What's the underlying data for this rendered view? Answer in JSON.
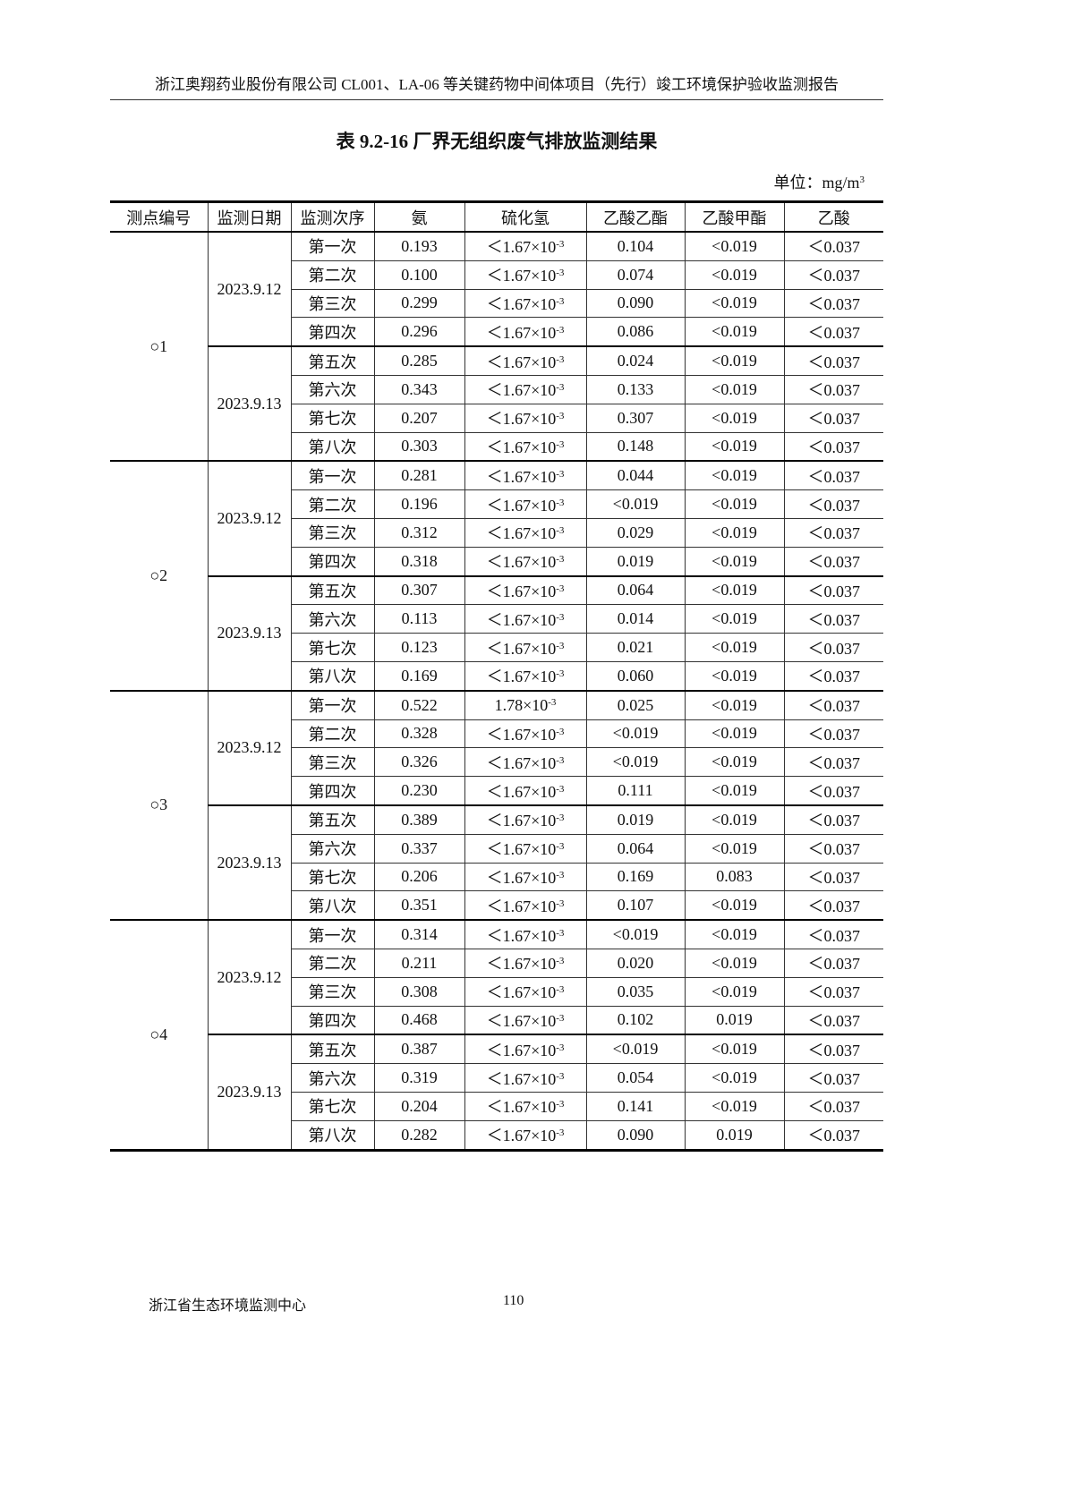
{
  "header": {
    "text": "浙江奥翔药业股份有限公司 CL001、LA-06 等关键药物中间体项目（先行）竣工环境保护验收监测报告"
  },
  "title": "表 9.2-16  厂界无组织废气排放监测结果",
  "unit": {
    "label": "单位：mg/m",
    "sup": "3"
  },
  "table": {
    "columns": [
      "测点编号",
      "监测日期",
      "监测次序",
      "氨",
      "硫化氢",
      "乙酸乙酯",
      "乙酸甲酯",
      "乙酸"
    ],
    "groups": [
      {
        "point": "○1",
        "dates": [
          {
            "date": "2023.9.12",
            "rows": [
              [
                "第一次",
                "0.193",
                [
                  "＜1.67×10",
                  "-3"
                ],
                "0.104",
                "<0.019",
                "＜0.037"
              ],
              [
                "第二次",
                "0.100",
                [
                  "＜1.67×10",
                  "-3"
                ],
                "0.074",
                "<0.019",
                "＜0.037"
              ],
              [
                "第三次",
                "0.299",
                [
                  "＜1.67×10",
                  "-3"
                ],
                "0.090",
                "<0.019",
                "＜0.037"
              ],
              [
                "第四次",
                "0.296",
                [
                  "＜1.67×10",
                  "-3"
                ],
                "0.086",
                "<0.019",
                "＜0.037"
              ]
            ]
          },
          {
            "date": "2023.9.13",
            "rows": [
              [
                "第五次",
                "0.285",
                [
                  "＜1.67×10",
                  "-3"
                ],
                "0.024",
                "<0.019",
                "＜0.037"
              ],
              [
                "第六次",
                "0.343",
                [
                  "＜1.67×10",
                  "-3"
                ],
                "0.133",
                "<0.019",
                "＜0.037"
              ],
              [
                "第七次",
                "0.207",
                [
                  "＜1.67×10",
                  "-3"
                ],
                "0.307",
                "<0.019",
                "＜0.037"
              ],
              [
                "第八次",
                "0.303",
                [
                  "＜1.67×10",
                  "-3"
                ],
                "0.148",
                "<0.019",
                "＜0.037"
              ]
            ]
          }
        ]
      },
      {
        "point": "○2",
        "dates": [
          {
            "date": "2023.9.12",
            "rows": [
              [
                "第一次",
                "0.281",
                [
                  "＜1.67×10",
                  "-3"
                ],
                "0.044",
                "<0.019",
                "＜0.037"
              ],
              [
                "第二次",
                "0.196",
                [
                  "＜1.67×10",
                  "-3"
                ],
                "<0.019",
                "<0.019",
                "＜0.037"
              ],
              [
                "第三次",
                "0.312",
                [
                  "＜1.67×10",
                  "-3"
                ],
                "0.029",
                "<0.019",
                "＜0.037"
              ],
              [
                "第四次",
                "0.318",
                [
                  "＜1.67×10",
                  "-3"
                ],
                "0.019",
                "<0.019",
                "＜0.037"
              ]
            ]
          },
          {
            "date": "2023.9.13",
            "rows": [
              [
                "第五次",
                "0.307",
                [
                  "＜1.67×10",
                  "-3"
                ],
                "0.064",
                "<0.019",
                "＜0.037"
              ],
              [
                "第六次",
                "0.113",
                [
                  "＜1.67×10",
                  "-3"
                ],
                "0.014",
                "<0.019",
                "＜0.037"
              ],
              [
                "第七次",
                "0.123",
                [
                  "＜1.67×10",
                  "-3"
                ],
                "0.021",
                "<0.019",
                "＜0.037"
              ],
              [
                "第八次",
                "0.169",
                [
                  "＜1.67×10",
                  "-3"
                ],
                "0.060",
                "<0.019",
                "＜0.037"
              ]
            ]
          }
        ]
      },
      {
        "point": "○3",
        "dates": [
          {
            "date": "2023.9.12",
            "rows": [
              [
                "第一次",
                "0.522",
                [
                  "1.78×10",
                  "-3"
                ],
                "0.025",
                "<0.019",
                "＜0.037"
              ],
              [
                "第二次",
                "0.328",
                [
                  "＜1.67×10",
                  "-3"
                ],
                "<0.019",
                "<0.019",
                "＜0.037"
              ],
              [
                "第三次",
                "0.326",
                [
                  "＜1.67×10",
                  "-3"
                ],
                "<0.019",
                "<0.019",
                "＜0.037"
              ],
              [
                "第四次",
                "0.230",
                [
                  "＜1.67×10",
                  "-3"
                ],
                "0.111",
                "<0.019",
                "＜0.037"
              ]
            ]
          },
          {
            "date": "2023.9.13",
            "rows": [
              [
                "第五次",
                "0.389",
                [
                  "＜1.67×10",
                  "-3"
                ],
                "0.019",
                "<0.019",
                "＜0.037"
              ],
              [
                "第六次",
                "0.337",
                [
                  "＜1.67×10",
                  "-3"
                ],
                "0.064",
                "<0.019",
                "＜0.037"
              ],
              [
                "第七次",
                "0.206",
                [
                  "＜1.67×10",
                  "-3"
                ],
                "0.169",
                "0.083",
                "＜0.037"
              ],
              [
                "第八次",
                "0.351",
                [
                  "＜1.67×10",
                  "-3"
                ],
                "0.107",
                "<0.019",
                "＜0.037"
              ]
            ]
          }
        ]
      },
      {
        "point": "○4",
        "dates": [
          {
            "date": "2023.9.12",
            "rows": [
              [
                "第一次",
                "0.314",
                [
                  "＜1.67×10",
                  "-3"
                ],
                "<0.019",
                "<0.019",
                "＜0.037"
              ],
              [
                "第二次",
                "0.211",
                [
                  "＜1.67×10",
                  "-3"
                ],
                "0.020",
                "<0.019",
                "＜0.037"
              ],
              [
                "第三次",
                "0.308",
                [
                  "＜1.67×10",
                  "-3"
                ],
                "0.035",
                "<0.019",
                "＜0.037"
              ],
              [
                "第四次",
                "0.468",
                [
                  "＜1.67×10",
                  "-3"
                ],
                "0.102",
                "0.019",
                "＜0.037"
              ]
            ]
          },
          {
            "date": "2023.9.13",
            "rows": [
              [
                "第五次",
                "0.387",
                [
                  "＜1.67×10",
                  "-3"
                ],
                "<0.019",
                "<0.019",
                "＜0.037"
              ],
              [
                "第六次",
                "0.319",
                [
                  "＜1.67×10",
                  "-3"
                ],
                "0.054",
                "<0.019",
                "＜0.037"
              ],
              [
                "第七次",
                "0.204",
                [
                  "＜1.67×10",
                  "-3"
                ],
                "0.141",
                "<0.019",
                "＜0.037"
              ],
              [
                "第八次",
                "0.282",
                [
                  "＜1.67×10",
                  "-3"
                ],
                "0.090",
                "0.019",
                "＜0.037"
              ]
            ]
          }
        ]
      }
    ]
  },
  "footer": {
    "org": "浙江省生态环境监测中心",
    "page": "110"
  }
}
